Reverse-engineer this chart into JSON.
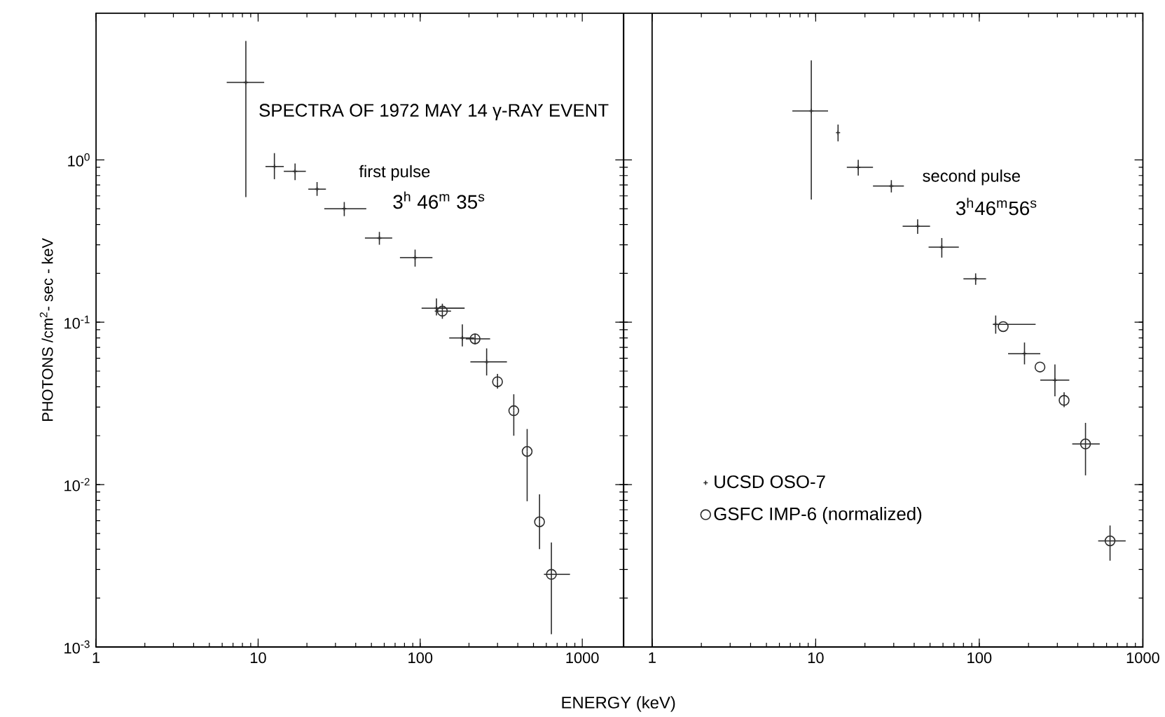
{
  "chart_data": [
    {
      "type": "scatter",
      "title": "SPECTRA OF 1972 MAY 14 γ-RAY EVENT",
      "xlabel": "ENERGY (keV)",
      "ylabel": "PHOTONS /cm$^{2}$- sec - keV",
      "log": "xy",
      "xlim": [
        1,
        1800
      ],
      "ylim": [
        0.001,
        8
      ],
      "xticks": [
        1,
        10,
        100,
        1000
      ],
      "yticks": [
        {
          "value": 0.001,
          "label": "10$^{-3}$"
        },
        {
          "value": 0.01,
          "label": "10$^{-2}$"
        },
        {
          "value": 0.1,
          "label": "10$^{-1}$"
        },
        {
          "value": 1,
          "label": "10$^{0}$"
        }
      ],
      "annotations": [
        "first pulse",
        "3$^{h}$ 46$^{m}$ 35$^{s}$"
      ],
      "series": [
        {
          "color": "#2b2b2b",
          "marker": "cross",
          "x": [
            8.4,
            12.6,
            16.9,
            23.1,
            34,
            56,
            93,
            126,
            182,
            257
          ],
          "values": [
            3.0,
            0.91,
            0.85,
            0.66,
            0.5,
            0.33,
            0.25,
            0.122,
            0.08,
            0.057
          ],
          "errors": [
            [
              0.59,
              5.4
            ],
            [
              0.76,
              1.1
            ],
            [
              0.75,
              0.95
            ],
            [
              0.6,
              0.73
            ],
            [
              0.45,
              0.55
            ],
            [
              0.3,
              0.36
            ],
            [
              0.22,
              0.28
            ],
            [
              0.11,
              0.14
            ],
            [
              0.071,
              0.097
            ],
            [
              0.047,
              0.069
            ]
          ],
          "xerrors": [
            [
              6.4,
              10.9
            ],
            [
              11.1,
              14.4
            ],
            [
              14.4,
              19.7
            ],
            [
              20.4,
              26.2
            ],
            [
              25.6,
              46.5
            ],
            [
              45.6,
              67.2
            ],
            [
              75,
              119
            ],
            [
              102,
              188
            ],
            [
              151,
              215
            ],
            [
              204,
              343
            ]
          ]
        },
        {
          "color": "#2b2b2b",
          "marker": "circle",
          "x": [
            137,
            218,
            300,
            378,
            457,
            545,
            645
          ],
          "values": [
            0.117,
            0.079,
            0.043,
            0.0285,
            0.016,
            0.0059,
            0.0028
          ],
          "errors": [
            [
              0.105,
              0.13
            ],
            [
              0.073,
              0.085
            ],
            [
              0.039,
              0.048
            ],
            [
              0.02,
              0.036
            ],
            [
              0.0079,
              0.022
            ],
            [
              0.004,
              0.0087
            ],
            [
              0.0012,
              0.0044
            ]
          ],
          "xerrors": [
            [
              123,
              155
            ],
            [
              191,
              270
            ],
            null,
            null,
            null,
            null,
            [
              580,
              840
            ]
          ]
        }
      ]
    },
    {
      "type": "scatter",
      "log": "xy",
      "tick_labels": "x",
      "legend": "bottom left",
      "xlim": [
        0.67,
        1000
      ],
      "ylim": [
        0.001,
        8
      ],
      "xticks": [
        1,
        10,
        100,
        1000
      ],
      "yticks": [
        {
          "value": 0.001,
          "label": null
        },
        {
          "value": 0.01,
          "label": null
        },
        {
          "value": 0.1,
          "label": null
        },
        {
          "value": 1,
          "label": null
        }
      ],
      "ref_lines": [
        {
          "axis": "x",
          "value": 1
        }
      ],
      "annotations": [
        "second pulse",
        "3$^{h}$46$^{m}$56$^{s}$"
      ],
      "series": [
        {
          "name": "UCSD OSO-7",
          "color": "#2b2b2b",
          "marker": "cross",
          "x": [
            9.4,
            13.7,
            18.2,
            29,
            42,
            59,
            95,
            126,
            189,
            290
          ],
          "values": [
            2.0,
            1.47,
            0.9,
            0.69,
            0.39,
            0.29,
            0.185,
            0.097,
            0.064,
            0.044
          ],
          "errors": [
            [
              0.57,
              4.1
            ],
            [
              1.3,
              1.65
            ],
            [
              0.8,
              1.0
            ],
            [
              0.63,
              0.75
            ],
            [
              0.35,
              0.43
            ],
            [
              0.25,
              0.33
            ],
            [
              0.17,
              0.2
            ],
            [
              0.085,
              0.11
            ],
            [
              0.055,
              0.075
            ],
            [
              0.035,
              0.055
            ]
          ],
          "xerrors": [
            [
              7.2,
              11.9
            ],
            null,
            [
              15.5,
              22.4
            ],
            [
              22.4,
              34.6
            ],
            [
              34,
              50
            ],
            [
              49,
              75
            ],
            [
              80,
              110
            ],
            [
              121,
              221
            ],
            [
              150,
              236
            ],
            [
              236,
              355
            ]
          ]
        },
        {
          "name": "GSFC IMP-6 (normalized)",
          "color": "#2b2b2b",
          "marker": "circle",
          "x": [
            140,
            235,
            330,
            446,
            630
          ],
          "values": [
            0.094,
            0.053,
            0.033,
            0.0178,
            0.0045
          ],
          "errors": [
            null,
            null,
            [
              0.03,
              0.037
            ],
            [
              0.0114,
              0.024
            ],
            [
              0.0034,
              0.0056
            ]
          ],
          "xerrors": [
            null,
            null,
            null,
            [
              370,
              545
            ],
            [
              533,
              785
            ]
          ]
        }
      ]
    }
  ]
}
